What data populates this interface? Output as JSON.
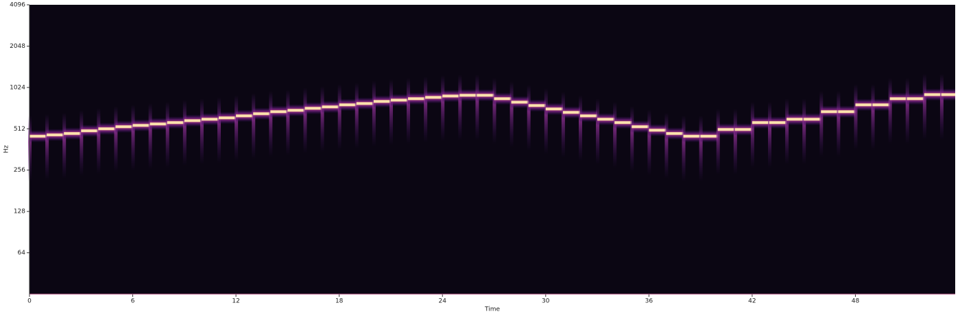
{
  "chart_data": {
    "type": "spectrogram",
    "xlabel": "Time",
    "ylabel": "Hz",
    "x": [
      0,
      1,
      2,
      3,
      4,
      5,
      6,
      7,
      8,
      9,
      10,
      11,
      12,
      13,
      14,
      15,
      16,
      17,
      18,
      19,
      20,
      21,
      22,
      23,
      24,
      25,
      26,
      27,
      28,
      29,
      30,
      31,
      32,
      33,
      34,
      35,
      36,
      37,
      38,
      39,
      40,
      41,
      42,
      43,
      44,
      45,
      46,
      47,
      48,
      49,
      50,
      51,
      52,
      53
    ],
    "values": [
      452,
      462,
      473,
      495,
      512,
      530,
      542,
      555,
      568,
      587,
      601,
      615,
      636,
      659,
      682,
      698,
      722,
      739,
      765,
      782,
      810,
      828,
      848,
      867,
      887,
      898,
      898,
      848,
      800,
      756,
      714,
      674,
      636,
      601,
      568,
      530,
      500,
      473,
      452,
      452,
      506,
      506,
      568,
      568,
      601,
      601,
      682,
      682,
      765,
      765,
      848,
      848,
      908,
      908
    ],
    "color": "#fde2ad",
    "xlim": [
      0,
      53.8
    ],
    "xticks": [
      0,
      6,
      12,
      18,
      24,
      30,
      36,
      42,
      48
    ],
    "ylim": [
      32,
      4096
    ],
    "yticks": [
      64,
      128,
      256,
      512,
      1024,
      2048,
      4096
    ],
    "yscale": "log2"
  }
}
